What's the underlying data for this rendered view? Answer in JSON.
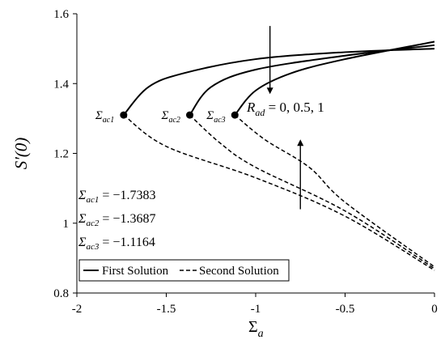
{
  "chart_data": {
    "type": "line",
    "xlabel": {
      "main": "Σ",
      "sub": "a"
    },
    "ylabel": "S′(0)",
    "xlim": [
      -2,
      0
    ],
    "ylim": [
      0.8,
      1.6
    ],
    "xticks": [
      "-2",
      "-1.5",
      "-1",
      "-0.5",
      "0"
    ],
    "yticks": [
      "0.8",
      "1",
      "1.2",
      "1.4",
      "1.6"
    ],
    "grid": false,
    "legend": {
      "placement": "bottom-left",
      "entries": [
        {
          "label": "First Solution",
          "style": "solid"
        },
        {
          "label": "Second Solution",
          "style": "dashed"
        }
      ]
    },
    "series": [
      {
        "first": [
          [
            -1.7383,
            1.31
          ],
          [
            -1.6,
            1.39
          ],
          [
            -1.4,
            1.43
          ],
          [
            -1.0,
            1.47
          ],
          [
            -0.5,
            1.49
          ],
          [
            0,
            1.5
          ]
        ],
        "second": [
          [
            -1.7383,
            1.31
          ],
          [
            -1.5,
            1.22
          ],
          [
            -1.0,
            1.13
          ],
          [
            -0.5,
            1.02
          ],
          [
            0,
            0.865
          ]
        ]
      },
      {
        "first": [
          [
            -1.3687,
            1.31
          ],
          [
            -1.25,
            1.39
          ],
          [
            -1.0,
            1.44
          ],
          [
            -0.5,
            1.48
          ],
          [
            0,
            1.51
          ]
        ],
        "second": [
          [
            -1.3687,
            1.31
          ],
          [
            -1.2,
            1.23
          ],
          [
            -1.0,
            1.16
          ],
          [
            -0.5,
            1.035
          ],
          [
            0,
            0.87
          ]
        ]
      },
      {
        "first": [
          [
            -1.1164,
            1.31
          ],
          [
            -1.0,
            1.38
          ],
          [
            -0.8,
            1.43
          ],
          [
            -0.5,
            1.47
          ],
          [
            0,
            1.52
          ]
        ],
        "second": [
          [
            -1.1164,
            1.31
          ],
          [
            -0.95,
            1.24
          ],
          [
            -0.7,
            1.16
          ],
          [
            -0.5,
            1.06
          ],
          [
            0,
            0.875
          ]
        ]
      }
    ],
    "critical_points": [
      {
        "symbol": "Σ",
        "sub": "ac1",
        "x": -1.7383,
        "y": 1.31
      },
      {
        "symbol": "Σ",
        "sub": "ac2",
        "x": -1.3687,
        "y": 1.31
      },
      {
        "symbol": "Σ",
        "sub": "ac3",
        "x": -1.1164,
        "y": 1.31
      }
    ],
    "annotations": {
      "parameter": {
        "symbol": "R",
        "sub": "ad",
        "text": " = 0, 0.5, 1"
      },
      "values": [
        {
          "symbol": "Σ",
          "sub": "ac1",
          "text": " = −1.7383"
        },
        {
          "symbol": "Σ",
          "sub": "ac2",
          "text": " = −1.3687"
        },
        {
          "symbol": "Σ",
          "sub": "ac3",
          "text": " = −1.1164"
        }
      ],
      "arrow_down": {
        "x": -0.92,
        "y_from": 1.565,
        "y_to": 1.37
      },
      "arrow_up": {
        "x": -0.75,
        "y_from": 1.04,
        "y_to": 1.24
      }
    }
  }
}
